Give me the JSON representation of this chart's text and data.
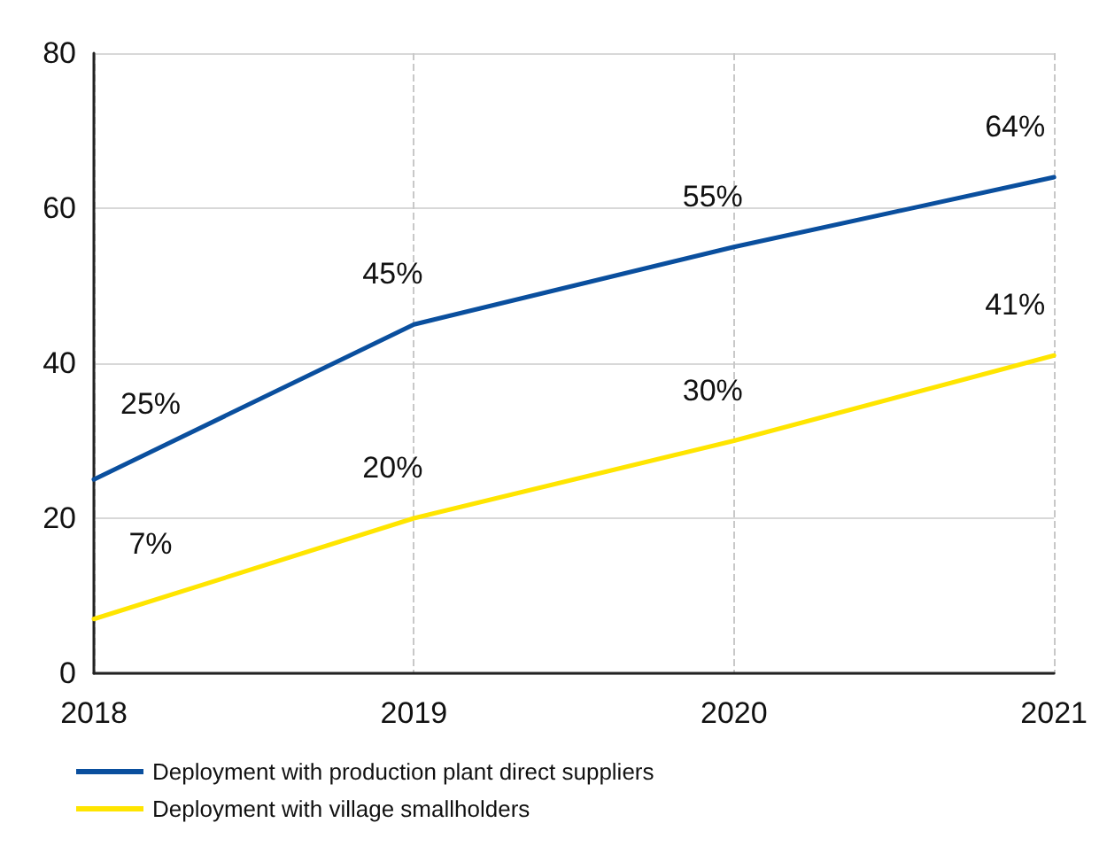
{
  "chart_data": {
    "type": "line",
    "categories": [
      "2018",
      "2019",
      "2020",
      "2021"
    ],
    "series": [
      {
        "name": "Deployment with production plant direct suppliers",
        "color": "#0a4f9e",
        "values": [
          25,
          45,
          55,
          64
        ],
        "value_labels": [
          "25%",
          "45%",
          "55%",
          "64%"
        ]
      },
      {
        "name": "Deployment with village smallholders",
        "color": "#ffe500",
        "values": [
          7,
          20,
          30,
          41
        ],
        "value_labels": [
          "7%",
          "20%",
          "30%",
          "41%"
        ]
      }
    ],
    "ylim": [
      0,
      80
    ],
    "yticks": [
      0,
      20,
      40,
      60,
      80
    ],
    "grid": true,
    "legend": "bottom left",
    "marker": "none",
    "line_style": "solid"
  }
}
